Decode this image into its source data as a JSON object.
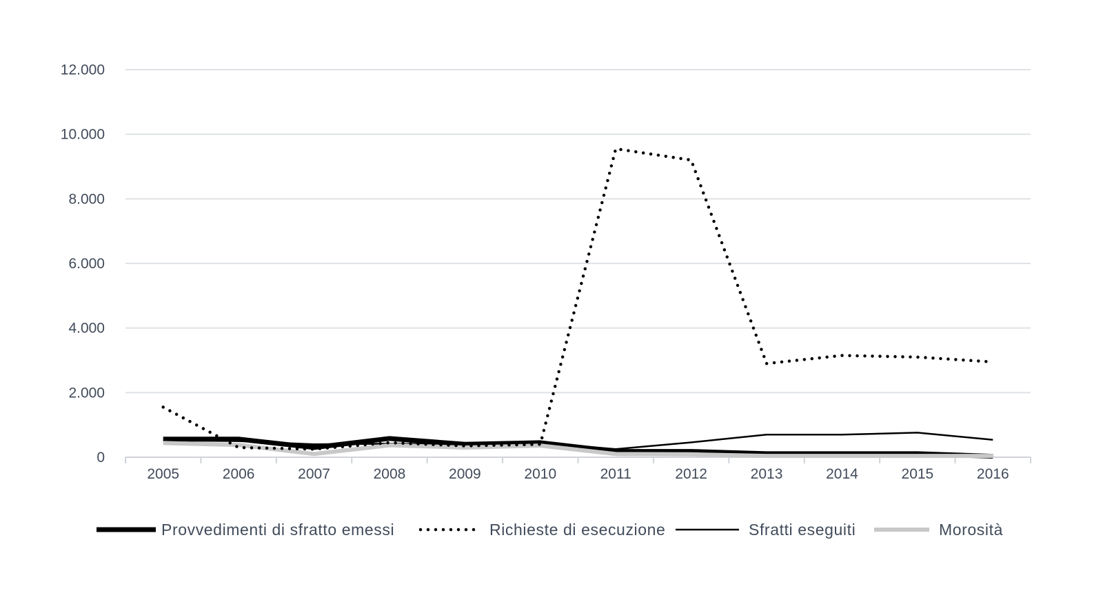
{
  "chart_data": {
    "type": "line",
    "title": "",
    "xlabel": "",
    "ylabel": "",
    "categories": [
      "2005",
      "2006",
      "2007",
      "2008",
      "2009",
      "2010",
      "2011",
      "2012",
      "2013",
      "2014",
      "2015",
      "2016"
    ],
    "ylim": [
      0,
      12000
    ],
    "yticks": [
      0,
      2000,
      4000,
      6000,
      8000,
      10000,
      12000
    ],
    "ytick_labels": [
      "0",
      "2.000",
      "4.000",
      "6.000",
      "8.000",
      "10.000",
      "12.000"
    ],
    "grid": true,
    "legend_position": "bottom",
    "series": [
      {
        "name": "Provvedimenti di sfratto emessi",
        "style": "thick",
        "color": "#000000",
        "values": [
          560,
          560,
          300,
          580,
          400,
          450,
          180,
          180,
          110,
          110,
          110,
          30
        ]
      },
      {
        "name": "Richieste di esecuzione",
        "style": "dotted",
        "color": "#000000",
        "values": [
          1550,
          300,
          250,
          450,
          350,
          400,
          9550,
          9200,
          2900,
          3150,
          3100,
          2950
        ]
      },
      {
        "name": "Sfratti eseguiti",
        "style": "thin",
        "color": "#000000",
        "values": [
          520,
          500,
          400,
          420,
          400,
          450,
          250,
          460,
          700,
          700,
          760,
          540
        ]
      },
      {
        "name": "Morosità",
        "style": "grey",
        "color": "#c8c8c8",
        "values": [
          440,
          380,
          100,
          370,
          300,
          360,
          100,
          90,
          40,
          40,
          40,
          40
        ]
      }
    ]
  }
}
